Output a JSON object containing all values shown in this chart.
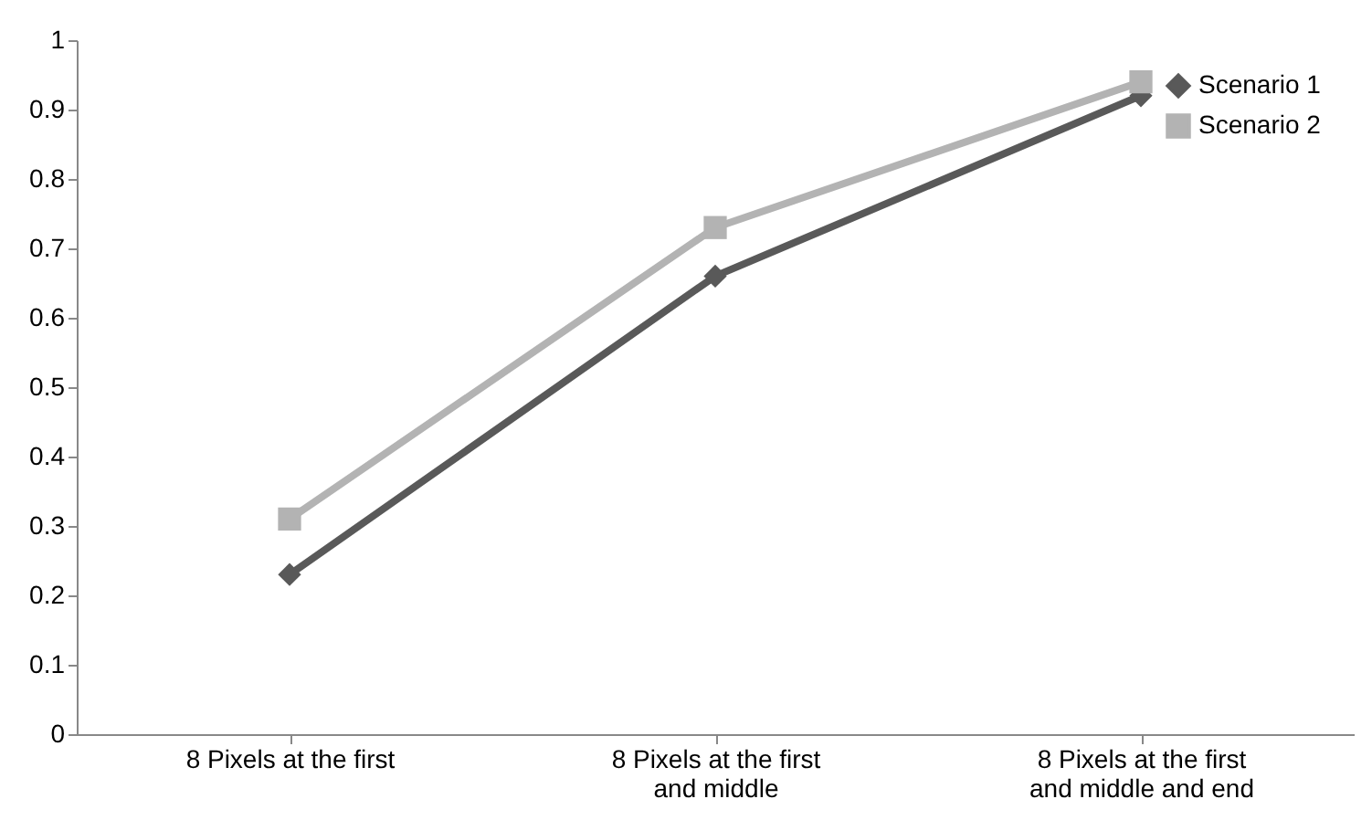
{
  "chart_data": {
    "type": "line",
    "categories": [
      "8 Pixels at the first",
      "8 Pixels at the first and middle",
      "8 Pixels at the first and middle and end"
    ],
    "series": [
      {
        "name": "Scenario 1",
        "color": "#595959",
        "marker": "diamond",
        "values": [
          0.23,
          0.66,
          0.92
        ]
      },
      {
        "name": "Scenario 2",
        "color": "#b3b3b3",
        "marker": "square",
        "values": [
          0.31,
          0.73,
          0.94
        ]
      }
    ],
    "ylim": [
      0,
      1
    ],
    "yticks": [
      0,
      0.1,
      0.2,
      0.3,
      0.4,
      0.5,
      0.6,
      0.7,
      0.8,
      0.9,
      1
    ],
    "grid": false,
    "legend": "top right",
    "line_style": "solid"
  }
}
